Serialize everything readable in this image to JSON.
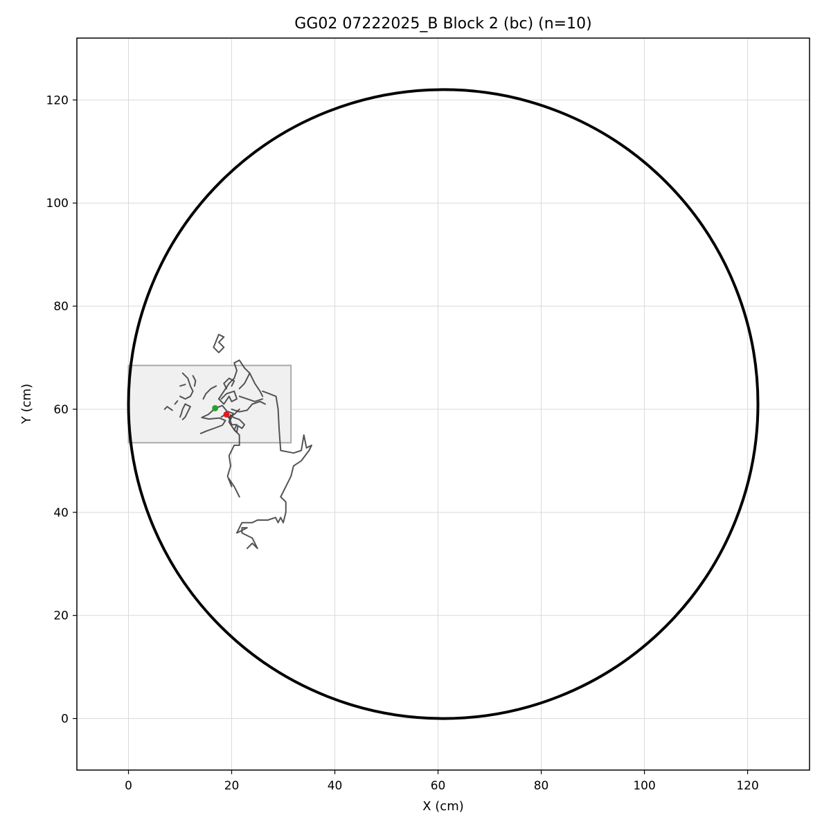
{
  "chart_data": {
    "type": "scatter",
    "title": "GG02 07222025_B Block 2 (bc) (n=10)",
    "xlabel": "X (cm)",
    "ylabel": "Y (cm)",
    "xlim": [
      -10,
      132
    ],
    "ylim": [
      -10,
      132
    ],
    "xticks": [
      0,
      20,
      40,
      60,
      80,
      100,
      120
    ],
    "yticks": [
      0,
      20,
      40,
      60,
      80,
      100,
      120
    ],
    "grid": true,
    "arena": {
      "center": [
        61,
        61
      ],
      "radius": 61,
      "color": "#000000"
    },
    "zone": {
      "x0": 0,
      "x1": 31.5,
      "y0": 53.5,
      "y1": 68.5,
      "fill": "#f0f0f0",
      "stroke": "#aaaaaa"
    },
    "trajectory_color": "#404040",
    "trajectories": [
      {
        "points": [
          [
            23,
            33
          ],
          [
            24,
            34
          ],
          [
            25,
            33
          ],
          [
            24,
            35
          ],
          [
            22,
            36
          ],
          [
            22,
            37
          ],
          [
            23,
            37
          ],
          [
            21,
            36
          ],
          [
            22,
            38
          ],
          [
            24,
            38
          ],
          [
            25,
            38.5
          ],
          [
            27,
            38.5
          ],
          [
            28.5,
            39
          ],
          [
            29,
            38
          ],
          [
            29.5,
            39
          ],
          [
            30,
            38
          ],
          [
            30.5,
            40
          ],
          [
            30.5,
            42
          ],
          [
            29.5,
            43
          ],
          [
            30.5,
            45
          ],
          [
            31.5,
            47
          ],
          [
            32,
            49
          ],
          [
            33.5,
            50
          ],
          [
            35,
            52
          ],
          [
            35.5,
            53
          ],
          [
            34.5,
            52.5
          ],
          [
            34,
            55
          ],
          [
            33.5,
            52
          ],
          [
            32,
            51.5
          ],
          [
            29.5,
            52
          ],
          [
            29.2,
            56
          ],
          [
            29,
            60
          ],
          [
            28.6,
            62.5
          ],
          [
            26,
            63.5
          ]
        ]
      },
      {
        "points": [
          [
            21.5,
            60
          ],
          [
            20.5,
            59
          ],
          [
            19.5,
            58.5
          ],
          [
            20,
            57
          ],
          [
            21,
            57
          ],
          [
            20.5,
            56
          ],
          [
            21.5,
            55
          ],
          [
            21.5,
            53
          ],
          [
            20.5,
            53
          ],
          [
            19.5,
            51
          ],
          [
            19.8,
            49
          ],
          [
            19.2,
            47
          ],
          [
            19.6,
            46
          ],
          [
            20,
            45
          ],
          [
            19.5,
            46.5
          ],
          [
            20.5,
            45
          ],
          [
            21,
            44
          ],
          [
            21.5,
            43
          ]
        ]
      },
      {
        "points": [
          [
            18,
            58.5
          ],
          [
            18.8,
            59
          ],
          [
            19.8,
            58
          ],
          [
            20.3,
            59.2
          ],
          [
            19.1,
            59.6
          ],
          [
            18.2,
            60.7
          ],
          [
            16.8,
            60.2
          ],
          [
            15.5,
            59
          ],
          [
            14.2,
            58.4
          ],
          [
            15.6,
            58.1
          ],
          [
            17.6,
            58.3
          ],
          [
            18.8,
            57.8
          ],
          [
            18.2,
            56.9
          ],
          [
            16.6,
            56.3
          ],
          [
            15.2,
            55.8
          ],
          [
            14,
            55.3
          ]
        ]
      },
      {
        "points": [
          [
            19.5,
            57.5
          ],
          [
            20.5,
            56
          ],
          [
            21,
            55.5
          ],
          [
            21.2,
            56.8
          ],
          [
            22,
            56.3
          ],
          [
            22.5,
            57
          ],
          [
            21.5,
            58
          ],
          [
            20.4,
            58.4
          ],
          [
            19.8,
            58.9
          ],
          [
            19.5,
            57.5
          ]
        ]
      },
      {
        "points": [
          [
            18,
            62
          ],
          [
            19,
            63
          ],
          [
            20.5,
            63.5
          ],
          [
            21,
            62
          ],
          [
            20,
            61.5
          ],
          [
            19.5,
            62.5
          ],
          [
            18.5,
            61
          ],
          [
            17.5,
            62
          ]
        ]
      },
      {
        "points": [
          [
            20,
            64.5
          ],
          [
            20.5,
            65.5
          ],
          [
            19.5,
            66
          ],
          [
            18.5,
            65
          ],
          [
            19,
            64
          ]
        ]
      },
      {
        "points": [
          [
            17.5,
            71
          ],
          [
            18.5,
            72
          ],
          [
            17.5,
            73
          ],
          [
            18.5,
            74
          ],
          [
            17.5,
            74.5
          ],
          [
            16.5,
            72
          ],
          [
            17.5,
            71
          ]
        ]
      },
      {
        "points": [
          [
            17.5,
            62
          ],
          [
            18.5,
            63.5
          ],
          [
            19.5,
            65
          ],
          [
            20.5,
            66
          ],
          [
            21,
            67.5
          ],
          [
            20.5,
            69
          ],
          [
            21.5,
            69.5
          ],
          [
            22.5,
            68
          ],
          [
            23.5,
            67
          ],
          [
            22.5,
            65
          ],
          [
            21.5,
            64
          ]
        ]
      },
      {
        "points": [
          [
            23.5,
            67
          ],
          [
            24.5,
            65
          ],
          [
            25.5,
            63.5
          ],
          [
            26,
            62.5
          ]
        ]
      },
      {
        "points": [
          [
            21.5,
            62.5
          ],
          [
            23,
            62
          ],
          [
            24.5,
            61.5
          ],
          [
            26,
            62
          ]
        ]
      },
      {
        "points": [
          [
            20,
            60
          ],
          [
            21.5,
            59.5
          ],
          [
            23,
            59.8
          ],
          [
            24,
            61
          ],
          [
            25.5,
            61.5
          ],
          [
            26.5,
            61
          ]
        ]
      },
      {
        "points": [
          [
            17,
            64.5
          ],
          [
            16,
            64
          ],
          [
            15,
            63
          ],
          [
            14.5,
            62
          ]
        ]
      },
      {
        "points": [
          [
            10.5,
            67
          ],
          [
            11.5,
            66
          ],
          [
            12,
            64.5
          ],
          [
            12.5,
            63.5
          ],
          [
            12,
            62.5
          ],
          [
            11,
            62
          ],
          [
            10,
            62.5
          ]
        ]
      },
      {
        "points": [
          [
            12.5,
            66.5
          ],
          [
            13,
            65.5
          ],
          [
            12.8,
            64.5
          ]
        ]
      },
      {
        "points": [
          [
            10,
            64.5
          ],
          [
            11,
            64.8
          ]
        ]
      },
      {
        "points": [
          [
            11,
            61
          ],
          [
            12,
            60.5
          ],
          [
            11.5,
            59.5
          ],
          [
            11,
            58.5
          ],
          [
            10.5,
            58
          ]
        ]
      },
      {
        "points": [
          [
            11,
            61
          ],
          [
            10.5,
            60
          ],
          [
            10.2,
            59
          ],
          [
            10,
            58.5
          ]
        ]
      },
      {
        "points": [
          [
            7,
            60
          ],
          [
            7.5,
            60.5
          ],
          [
            8.5,
            59.8
          ]
        ]
      },
      {
        "points": [
          [
            9,
            61
          ],
          [
            9.5,
            61.6
          ]
        ]
      }
    ],
    "markers": [
      {
        "x": 16.8,
        "y": 60.2,
        "color": "#2ca02c"
      },
      {
        "x": 19,
        "y": 59,
        "color": "#e41a1c"
      }
    ]
  }
}
